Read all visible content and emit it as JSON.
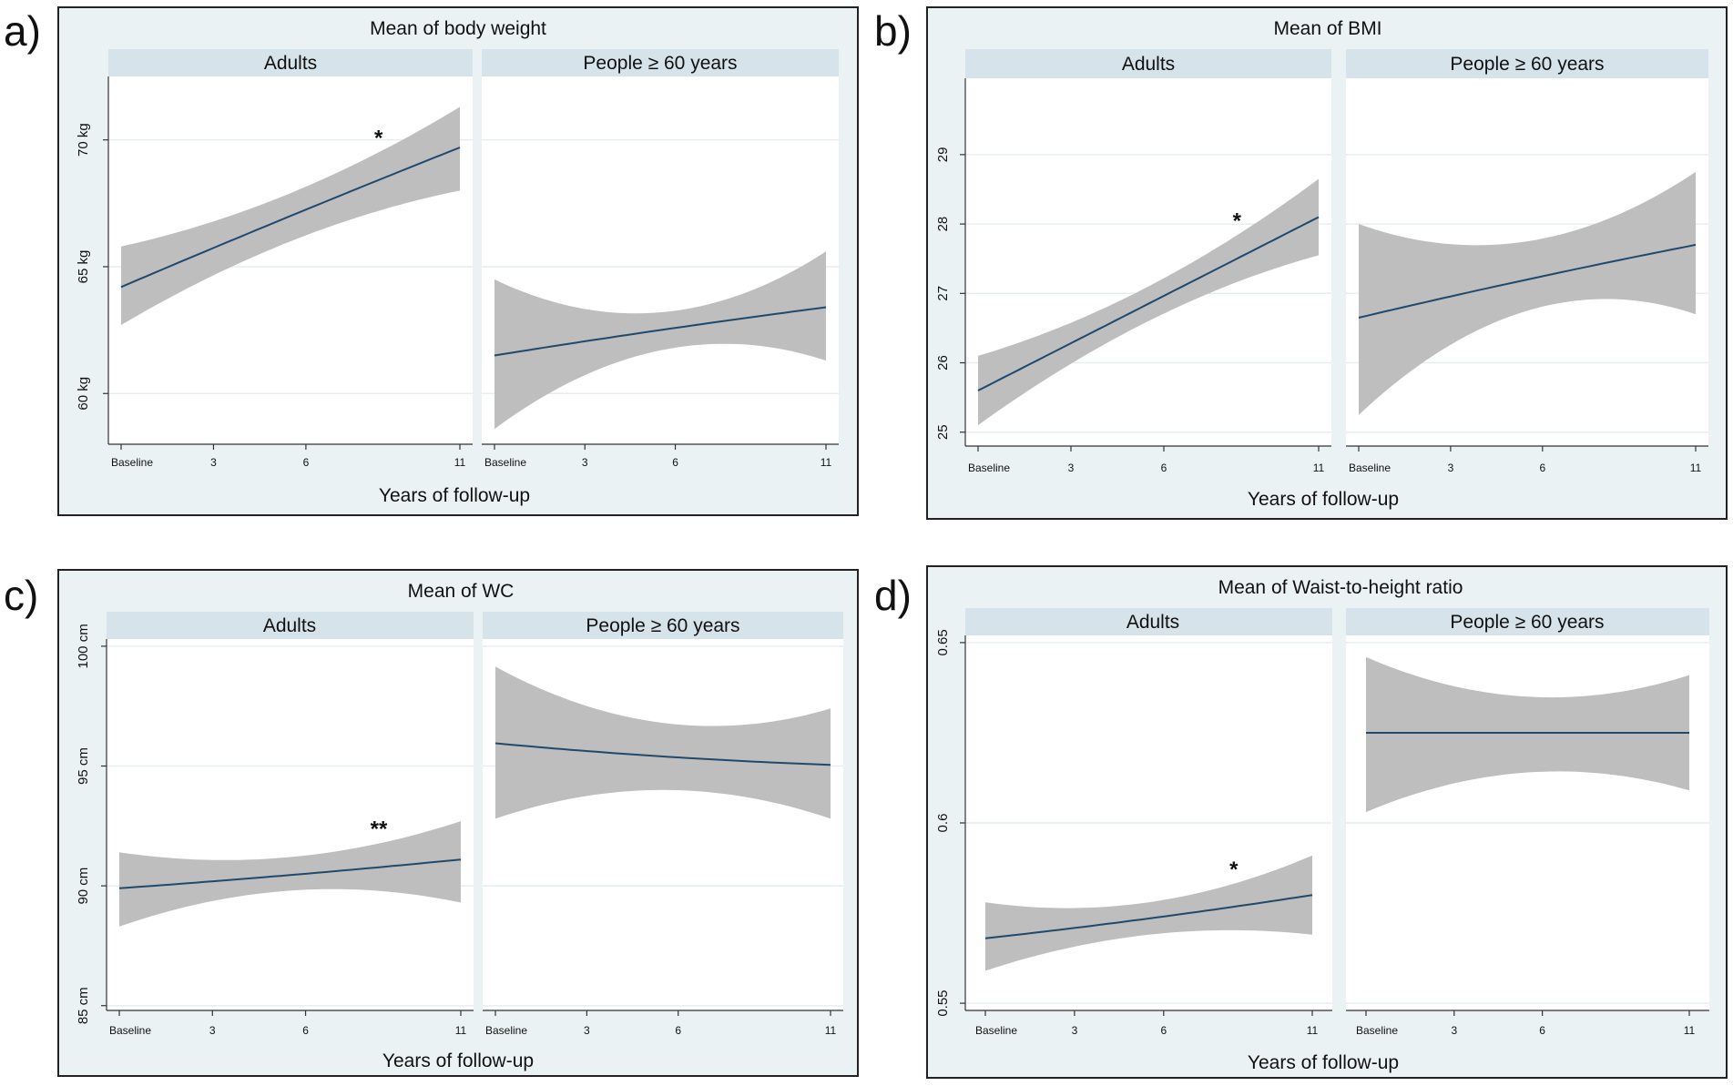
{
  "figure": {
    "x_axis_title": "Years of follow-up",
    "facet_labels": [
      "Adults",
      "People ≥ 60 years"
    ],
    "colors": {
      "band": "#bebebe",
      "line": "#1f4a6e",
      "strip": "#d6e3ea",
      "frame_bg": "#eaf2f3"
    }
  },
  "chart_data": [
    {
      "panel_label": "a)",
      "type": "line",
      "title": "Mean of body weight",
      "xlabel": "Years of follow-up",
      "x": [
        0,
        3,
        6,
        11
      ],
      "x_tick_labels": [
        "Baseline",
        "3",
        "6",
        "11"
      ],
      "ylim": [
        58.0,
        72.5
      ],
      "y_ticks": [
        60,
        65,
        70
      ],
      "y_tick_labels": [
        "60 kg",
        "65 kg",
        "70 kg"
      ],
      "facets": [
        {
          "name": "Adults",
          "fit": [
            64.2,
            67.0,
            69.7
          ],
          "ci_lower": [
            62.7,
            66.0,
            68.0
          ],
          "ci_upper": [
            65.8,
            67.9,
            71.3
          ],
          "annotation": "*"
        },
        {
          "name": "People ≥ 60 years",
          "fit": [
            61.5,
            62.5,
            63.4
          ],
          "ci_lower": [
            58.6,
            61.7,
            61.3
          ],
          "ci_upper": [
            64.5,
            63.2,
            65.6
          ],
          "annotation": ""
        }
      ]
    },
    {
      "panel_label": "b)",
      "type": "line",
      "title": "Mean of BMI",
      "xlabel": "Years of follow-up",
      "x": [
        0,
        3,
        6,
        11
      ],
      "x_tick_labels": [
        "Baseline",
        "3",
        "6",
        "11"
      ],
      "ylim": [
        24.8,
        30.1
      ],
      "y_ticks": [
        25,
        26,
        27,
        28,
        29
      ],
      "y_tick_labels": [
        "25",
        "26",
        "27",
        "28",
        "29"
      ],
      "facets": [
        {
          "name": "Adults",
          "fit": [
            25.6,
            26.85,
            28.1
          ],
          "ci_lower": [
            25.1,
            26.6,
            27.55
          ],
          "ci_upper": [
            26.1,
            27.1,
            28.65
          ],
          "annotation": "*"
        },
        {
          "name": "People ≥ 60 years",
          "fit": [
            26.65,
            27.2,
            27.7
          ],
          "ci_lower": [
            25.25,
            26.75,
            26.7
          ],
          "ci_upper": [
            28.0,
            27.75,
            28.75
          ],
          "annotation": ""
        }
      ]
    },
    {
      "panel_label": "c)",
      "type": "line",
      "title": "Mean of WC",
      "xlabel": "Years of follow-up",
      "x": [
        0,
        3,
        6,
        11
      ],
      "x_tick_labels": [
        "Baseline",
        "3",
        "6",
        "11"
      ],
      "ylim": [
        84.8,
        100.3
      ],
      "y_ticks": [
        85,
        90,
        95,
        100
      ],
      "y_tick_labels": [
        "85 cm",
        "90 cm",
        "95 cm",
        "100 cm"
      ],
      "facets": [
        {
          "name": "Adults",
          "fit": [
            89.9,
            90.45,
            91.1
          ],
          "ci_lower": [
            88.3,
            89.8,
            89.3
          ],
          "ci_upper": [
            91.4,
            91.2,
            92.7
          ],
          "annotation": "**"
        },
        {
          "name": "People ≥ 60 years",
          "fit": [
            95.95,
            95.4,
            95.05
          ],
          "ci_lower": [
            92.8,
            94.0,
            92.8
          ],
          "ci_upper": [
            99.15,
            96.8,
            97.4
          ],
          "annotation": ""
        }
      ]
    },
    {
      "panel_label": "d)",
      "type": "line",
      "title": "Mean of Waist-to-height ratio",
      "xlabel": "Years of follow-up",
      "x": [
        0,
        3,
        6,
        11
      ],
      "x_tick_labels": [
        "Baseline",
        "3",
        "6",
        "11"
      ],
      "ylim": [
        0.548,
        0.652
      ],
      "y_ticks": [
        0.55,
        0.6,
        0.65
      ],
      "y_tick_labels": [
        "0.55",
        "0.6",
        "0.65"
      ],
      "facets": [
        {
          "name": "Adults",
          "fit": [
            0.568,
            0.5735,
            0.58
          ],
          "ci_lower": [
            0.559,
            0.569,
            0.569
          ],
          "ci_upper": [
            0.578,
            0.578,
            0.591
          ],
          "annotation": "*"
        },
        {
          "name": "People ≥ 60 years",
          "fit": [
            0.625,
            0.625,
            0.625
          ],
          "ci_lower": [
            0.603,
            0.614,
            0.609
          ],
          "ci_upper": [
            0.646,
            0.635,
            0.641
          ],
          "annotation": ""
        }
      ]
    }
  ]
}
